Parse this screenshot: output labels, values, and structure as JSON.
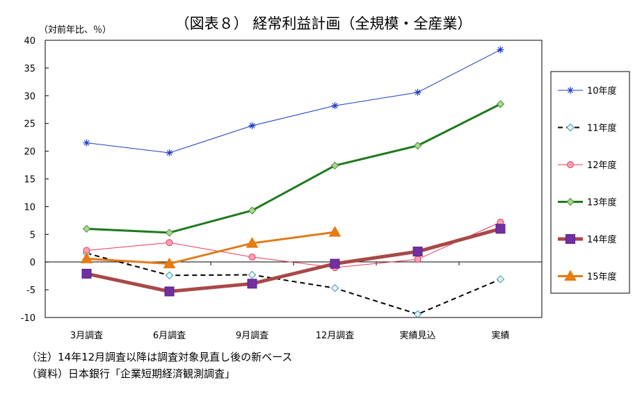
{
  "chart_data": {
    "type": "line",
    "title": "（図表８） 経常利益計画（全規模・全産業）",
    "unit_label": "（対前年比、％）",
    "ylim": [
      -10,
      40
    ],
    "yticks": [
      -10,
      -5,
      0,
      5,
      10,
      15,
      20,
      25,
      30,
      35,
      40
    ],
    "categories": [
      "3月調査",
      "6月調査",
      "9月調査",
      "12月調査",
      "実績見込",
      "実績"
    ],
    "grid": false,
    "legend_position": "right",
    "series": [
      {
        "name": "10年度",
        "values": [
          21.5,
          19.7,
          24.6,
          28.2,
          30.6,
          38.3
        ],
        "color": "#1f3ac2",
        "marker": "asterisk",
        "width": 1,
        "dash": ""
      },
      {
        "name": "11年度",
        "values": [
          1.6,
          -2.4,
          -2.3,
          -4.7,
          -9.4,
          -3.1
        ],
        "color": "#000000",
        "marker": "diamond-open",
        "marker_fill": "#e8f7fb",
        "marker_stroke": "#3a8fa8",
        "width": 2,
        "dash": "7,5"
      },
      {
        "name": "12年度",
        "values": [
          2.1,
          3.5,
          0.9,
          -1.0,
          0.5,
          7.2
        ],
        "color": "#e8365e",
        "marker": "circle",
        "marker_fill": "#f5a3b6",
        "marker_stroke": "#e8365e",
        "width": 1,
        "dash": ""
      },
      {
        "name": "13年度",
        "values": [
          6.0,
          5.3,
          9.3,
          17.4,
          21.0,
          28.5
        ],
        "color": "#1e7a1e",
        "marker": "diamond",
        "marker_fill": "#a8d98a",
        "marker_stroke": "#4a8a3a",
        "width": 3,
        "dash": ""
      },
      {
        "name": "14年度",
        "values": [
          -2.1,
          -5.3,
          -3.9,
          -0.3,
          1.9,
          6.0
        ],
        "color": "#a94848",
        "marker": "square",
        "marker_fill": "#7030a0",
        "marker_stroke": "#5a1f88",
        "width": 5,
        "dash": ""
      },
      {
        "name": "15年度",
        "values": [
          0.6,
          -0.3,
          3.4,
          5.4,
          null,
          null
        ],
        "color": "#e07b1b",
        "marker": "triangle",
        "marker_fill": "#e87b12",
        "marker_stroke": "#e87b12",
        "width": 3,
        "dash": ""
      }
    ]
  },
  "notes": [
    "（注）14年12月調査以降は調査対象見直し後の新ベース",
    "（資料）日本銀行「企業短期経済観測調査」"
  ]
}
